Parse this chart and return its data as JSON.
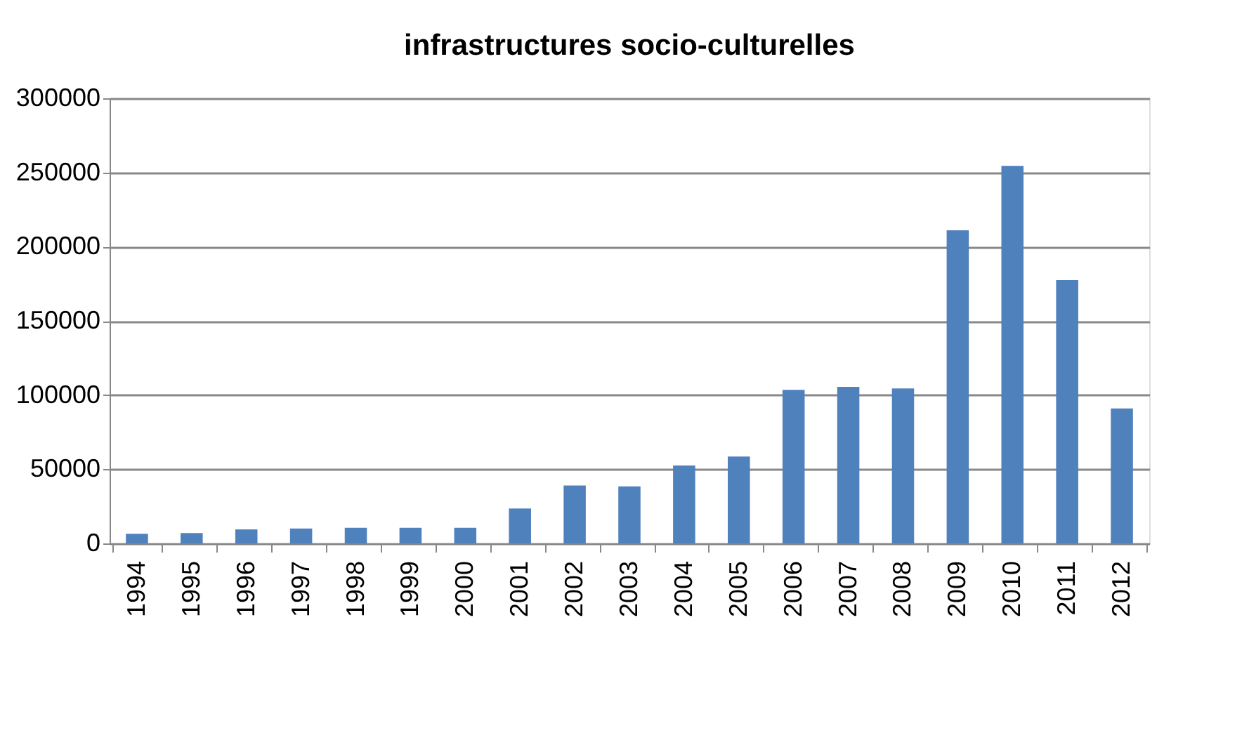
{
  "chart_data": {
    "type": "bar",
    "title": "infrastructures socio-culturelles",
    "categories": [
      "1994",
      "1995",
      "1996",
      "1997",
      "1998",
      "1999",
      "2000",
      "2001",
      "2002",
      "2003",
      "2004",
      "2005",
      "2006",
      "2007",
      "2008",
      "2009",
      "2010",
      "2011",
      "2012"
    ],
    "values": [
      6500,
      7000,
      9500,
      10000,
      10500,
      10500,
      10500,
      23500,
      39000,
      38500,
      52500,
      58500,
      103500,
      105500,
      104500,
      211000,
      254500,
      177500,
      91000
    ],
    "color": "#4f81bd",
    "ylim": [
      0,
      300000
    ],
    "yticks": [
      0,
      50000,
      100000,
      150000,
      200000,
      250000,
      300000
    ],
    "grid": "y"
  }
}
